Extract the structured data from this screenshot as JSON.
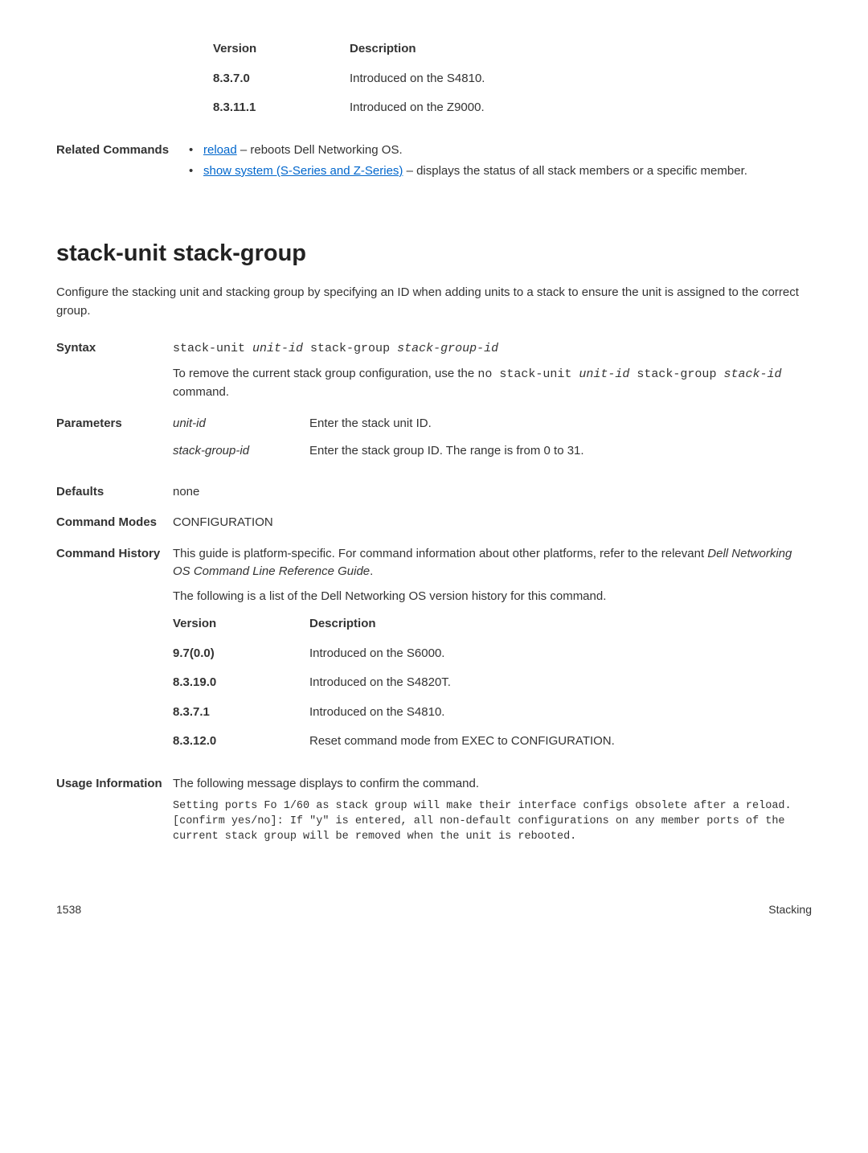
{
  "top_table": {
    "header_version": "Version",
    "header_desc": "Description",
    "rows": [
      {
        "version": "8.3.7.0",
        "desc": "Introduced on the S4810."
      },
      {
        "version": "8.3.11.1",
        "desc": "Introduced on the Z9000."
      }
    ]
  },
  "related_commands": {
    "label": "Related Commands",
    "items": [
      {
        "link": "reload",
        "suffix": " – reboots Dell Networking OS."
      },
      {
        "link": "show system (S-Series and Z-Series)",
        "suffix": " – displays the status of all stack members or a specific member."
      }
    ]
  },
  "heading": "stack-unit stack-group",
  "intro": "Configure the stacking unit and stacking group by specifying an ID when adding units to a stack to ensure the unit is assigned to the correct group.",
  "syntax": {
    "label": "Syntax",
    "line1_prefix": "stack-unit ",
    "line1_italic1": "unit-id",
    "line1_mid": " stack-group ",
    "line1_italic2": "stack-group-id",
    "line2_prefix": "To remove the current stack group configuration, use the ",
    "line2_code1": "no stack-unit ",
    "line2_code_italic1": "unit-id",
    "line2_code2": " stack-group ",
    "line2_code_italic2": "stack-id",
    "line2_suffix": " command."
  },
  "parameters": {
    "label": "Parameters",
    "rows": [
      {
        "name": "unit-id",
        "desc": "Enter the stack unit ID."
      },
      {
        "name": "stack-group-id",
        "desc": "Enter the stack group ID. The range is from 0 to 31."
      }
    ]
  },
  "defaults": {
    "label": "Defaults",
    "value": "none"
  },
  "command_modes": {
    "label": "Command Modes",
    "value": "CONFIGURATION"
  },
  "command_history": {
    "label": "Command History",
    "para1_prefix": "This guide is platform-specific. For command information about other platforms, refer to the relevant ",
    "para1_italic": "Dell Networking OS Command Line Reference Guide",
    "para1_suffix": ".",
    "para2": "The following is a list of the Dell Networking OS version history for this command.",
    "header_version": "Version",
    "header_desc": "Description",
    "rows": [
      {
        "version": "9.7(0.0)",
        "desc": "Introduced on the S6000."
      },
      {
        "version": "8.3.19.0",
        "desc": "Introduced on the S4820T."
      },
      {
        "version": "8.3.7.1",
        "desc": "Introduced on the S4810."
      },
      {
        "version": "8.3.12.0",
        "desc": "Reset command mode from EXEC to CONFIGURATION."
      }
    ]
  },
  "usage": {
    "label": "Usage Information",
    "intro": "The following message displays to confirm the command.",
    "code": "Setting ports Fo 1/60 as stack group will make their interface configs obsolete after a reload.[confirm yes/no]: If \"y\" is entered, all non-default configurations on any member ports of the current stack group will be removed when the unit is rebooted."
  },
  "footer": {
    "page": "1538",
    "section": "Stacking"
  }
}
